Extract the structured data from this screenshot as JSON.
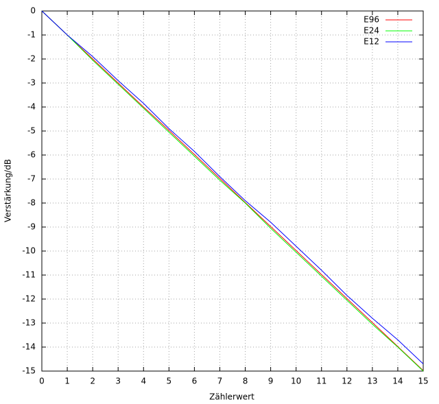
{
  "chart_data": {
    "type": "line",
    "xlabel": "Zählerwert",
    "ylabel": "Verstärkung/dB",
    "x": [
      0,
      1,
      2,
      3,
      4,
      5,
      6,
      7,
      8,
      9,
      10,
      11,
      12,
      13,
      14,
      15
    ],
    "series": [
      {
        "name": "E96",
        "color": "#ff0000",
        "values": [
          0,
          -1,
          -2,
          -3,
          -4,
          -4.98,
          -5.98,
          -6.98,
          -7.98,
          -8.98,
          -9.98,
          -10.98,
          -11.98,
          -12.98,
          -13.98,
          -14.98
        ]
      },
      {
        "name": "E24",
        "color": "#00ff00",
        "values": [
          0,
          -1,
          -2.05,
          -3.05,
          -4.05,
          -5.05,
          -6.05,
          -7.05,
          -8,
          -9.05,
          -10.05,
          -11.05,
          -12.05,
          -13.05,
          -14,
          -15
        ]
      },
      {
        "name": "E12",
        "color": "#0000ff",
        "values": [
          0,
          -1,
          -1.9,
          -2.9,
          -3.85,
          -4.9,
          -5.85,
          -6.9,
          -7.9,
          -8.8,
          -9.8,
          -10.8,
          -11.85,
          -12.8,
          -13.7,
          -14.7
        ]
      }
    ],
    "xlim": [
      0,
      15
    ],
    "xticks": [
      0,
      1,
      2,
      3,
      4,
      5,
      6,
      7,
      8,
      9,
      10,
      11,
      12,
      13,
      14,
      15
    ],
    "ylim": [
      -15,
      0
    ],
    "yticks": [
      0,
      -1,
      -2,
      -3,
      -4,
      -5,
      -6,
      -7,
      -8,
      -9,
      -10,
      -11,
      -12,
      -13,
      -14,
      -15
    ],
    "grid": true,
    "legend": "top-right"
  }
}
